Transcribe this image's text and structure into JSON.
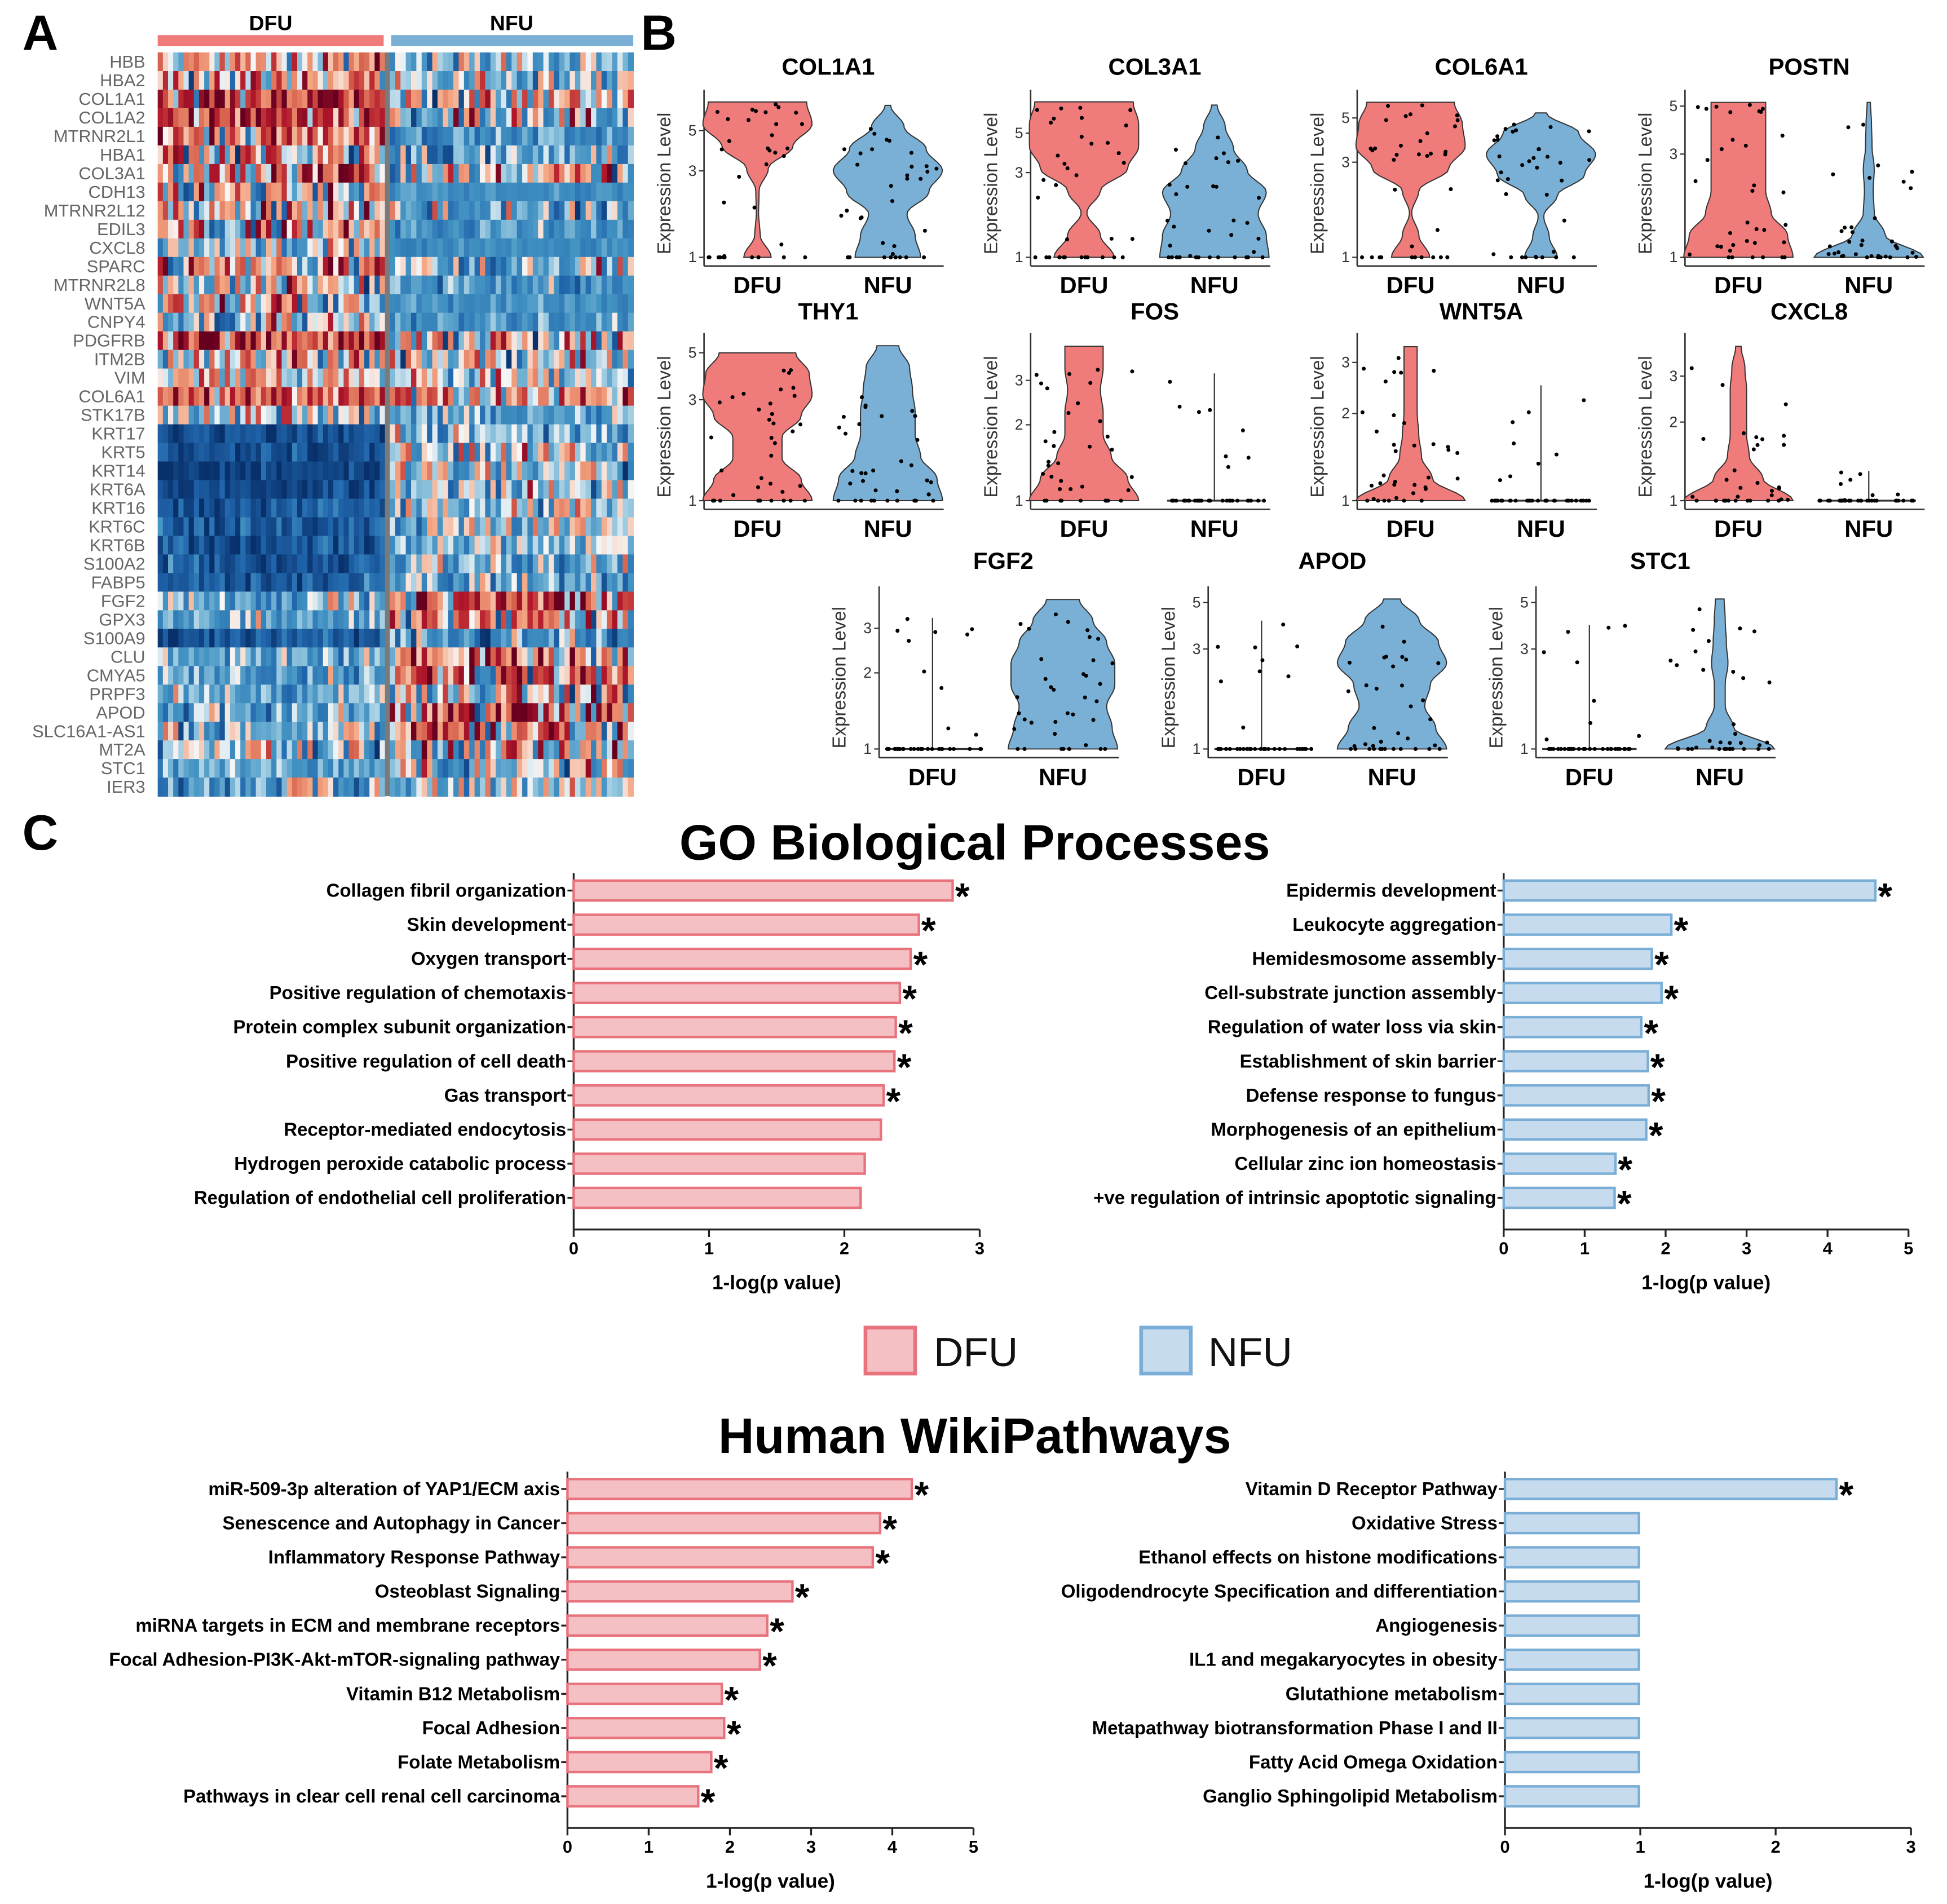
{
  "panels": {
    "a": "A",
    "b": "B",
    "c": "C"
  },
  "sections": {
    "go": "GO Biological Processes",
    "wiki": "Human WikiPathways"
  },
  "legend": [
    {
      "label": "DFU",
      "fill": "#f4c0c4",
      "stroke": "#e8737d"
    },
    {
      "label": "NFU",
      "fill": "#c6dcee",
      "stroke": "#7aaed6"
    }
  ],
  "colors": {
    "dfu": "#f07b7b",
    "nfu": "#7ab0d6",
    "dfu_bar": "#f4c0c4",
    "dfu_bar_edge": "#e8737d",
    "nfu_bar": "#c6dcee",
    "nfu_bar_edge": "#7aaed6"
  },
  "chart_data": [
    {
      "type": "heatmap",
      "groups": [
        "DFU",
        "NFU"
      ],
      "n_cells": {
        "DFU": 44,
        "NFU": 46
      },
      "value_scale": "row z-score (approx.)",
      "rows": [
        {
          "gene": "HBB",
          "dfu_mean": 0.4,
          "dfu_sd": 0.8,
          "nfu_mean": -0.3,
          "nfu_sd": 0.6
        },
        {
          "gene": "HBA2",
          "dfu_mean": 0.4,
          "dfu_sd": 0.8,
          "nfu_mean": -0.3,
          "nfu_sd": 0.6
        },
        {
          "gene": "COL1A1",
          "dfu_mean": 1.3,
          "dfu_sd": 0.7,
          "nfu_mean": 0.0,
          "nfu_sd": 0.9
        },
        {
          "gene": "COL1A2",
          "dfu_mean": 1.3,
          "dfu_sd": 0.7,
          "nfu_mean": 0.0,
          "nfu_sd": 0.9
        },
        {
          "gene": "MTRNR2L1",
          "dfu_mean": 0.5,
          "dfu_sd": 1.0,
          "nfu_mean": -0.8,
          "nfu_sd": 0.4
        },
        {
          "gene": "HBA1",
          "dfu_mean": 0.3,
          "dfu_sd": 0.9,
          "nfu_mean": -0.5,
          "nfu_sd": 0.7
        },
        {
          "gene": "COL3A1",
          "dfu_mean": 0.8,
          "dfu_sd": 1.1,
          "nfu_mean": -0.3,
          "nfu_sd": 0.9
        },
        {
          "gene": "CDH13",
          "dfu_mean": 0.0,
          "dfu_sd": 1.0,
          "nfu_mean": -0.8,
          "nfu_sd": 0.2
        },
        {
          "gene": "MTRNR2L12",
          "dfu_mean": 0.3,
          "dfu_sd": 1.0,
          "nfu_mean": -0.8,
          "nfu_sd": 0.7
        },
        {
          "gene": "EDIL3",
          "dfu_mean": 0.2,
          "dfu_sd": 1.2,
          "nfu_mean": -0.7,
          "nfu_sd": 0.3
        },
        {
          "gene": "CXCL8",
          "dfu_mean": -0.3,
          "dfu_sd": 0.8,
          "nfu_mean": -0.8,
          "nfu_sd": 0.2
        },
        {
          "gene": "SPARC",
          "dfu_mean": 0.6,
          "dfu_sd": 1.1,
          "nfu_mean": -0.3,
          "nfu_sd": 0.8
        },
        {
          "gene": "MTRNR2L8",
          "dfu_mean": 0.2,
          "dfu_sd": 1.0,
          "nfu_mean": -0.8,
          "nfu_sd": 0.5
        },
        {
          "gene": "WNT5A",
          "dfu_mean": -0.2,
          "dfu_sd": 1.0,
          "nfu_mean": -0.8,
          "nfu_sd": 0.2
        },
        {
          "gene": "CNPY4",
          "dfu_mean": -0.3,
          "dfu_sd": 0.8,
          "nfu_mean": -0.7,
          "nfu_sd": 0.3
        },
        {
          "gene": "PDGFRB",
          "dfu_mean": 1.2,
          "dfu_sd": 1.0,
          "nfu_mean": 0.1,
          "nfu_sd": 1.0
        },
        {
          "gene": "ITM2B",
          "dfu_mean": 0.3,
          "dfu_sd": 0.7,
          "nfu_mean": -0.2,
          "nfu_sd": 0.9
        },
        {
          "gene": "VIM",
          "dfu_mean": 0.3,
          "dfu_sd": 0.7,
          "nfu_mean": -0.1,
          "nfu_sd": 0.6
        },
        {
          "gene": "COL6A1",
          "dfu_mean": 0.9,
          "dfu_sd": 0.9,
          "nfu_mean": 0.3,
          "nfu_sd": 0.8
        },
        {
          "gene": "STK17B",
          "dfu_mean": -0.3,
          "dfu_sd": 0.8,
          "nfu_mean": -0.6,
          "nfu_sd": 0.5
        },
        {
          "gene": "KRT17",
          "dfu_mean": -1.7,
          "dfu_sd": 0.3,
          "nfu_mean": -0.3,
          "nfu_sd": 0.6
        },
        {
          "gene": "KRT5",
          "dfu_mean": -1.7,
          "dfu_sd": 0.3,
          "nfu_mean": -0.3,
          "nfu_sd": 0.6
        },
        {
          "gene": "KRT14",
          "dfu_mean": -2.0,
          "dfu_sd": 0.3,
          "nfu_mean": -0.3,
          "nfu_sd": 0.6
        },
        {
          "gene": "KRT6A",
          "dfu_mean": -1.8,
          "dfu_sd": 0.3,
          "nfu_mean": -0.3,
          "nfu_sd": 0.6
        },
        {
          "gene": "KRT16",
          "dfu_mean": -1.6,
          "dfu_sd": 0.4,
          "nfu_mean": -0.2,
          "nfu_sd": 0.6
        },
        {
          "gene": "KRT6C",
          "dfu_mean": -1.6,
          "dfu_sd": 0.4,
          "nfu_mean": -0.2,
          "nfu_sd": 0.6
        },
        {
          "gene": "KRT6B",
          "dfu_mean": -1.6,
          "dfu_sd": 0.4,
          "nfu_mean": -0.3,
          "nfu_sd": 0.6
        },
        {
          "gene": "S100A2",
          "dfu_mean": -1.6,
          "dfu_sd": 0.3,
          "nfu_mean": -0.5,
          "nfu_sd": 0.6
        },
        {
          "gene": "FABP5",
          "dfu_mean": -1.5,
          "dfu_sd": 0.4,
          "nfu_mean": -0.5,
          "nfu_sd": 0.6
        },
        {
          "gene": "FGF2",
          "dfu_mean": -0.6,
          "dfu_sd": 0.5,
          "nfu_mean": 0.6,
          "nfu_sd": 1.1
        },
        {
          "gene": "GPX3",
          "dfu_mean": -0.6,
          "dfu_sd": 0.5,
          "nfu_mean": 0.5,
          "nfu_sd": 1.1
        },
        {
          "gene": "S100A9",
          "dfu_mean": -1.6,
          "dfu_sd": 0.4,
          "nfu_mean": -0.6,
          "nfu_sd": 0.6
        },
        {
          "gene": "CLU",
          "dfu_mean": -0.6,
          "dfu_sd": 0.5,
          "nfu_mean": 0.8,
          "nfu_sd": 1.2
        },
        {
          "gene": "CMYA5",
          "dfu_mean": -0.6,
          "dfu_sd": 0.5,
          "nfu_mean": 0.8,
          "nfu_sd": 1.2
        },
        {
          "gene": "PRPF3",
          "dfu_mean": -0.6,
          "dfu_sd": 0.4,
          "nfu_mean": 0.3,
          "nfu_sd": 1.0
        },
        {
          "gene": "APOD",
          "dfu_mean": -0.5,
          "dfu_sd": 0.5,
          "nfu_mean": 0.9,
          "nfu_sd": 1.1
        },
        {
          "gene": "SLC16A1-AS1",
          "dfu_mean": -0.4,
          "dfu_sd": 0.6,
          "nfu_mean": 0.4,
          "nfu_sd": 1.0
        },
        {
          "gene": "MT2A",
          "dfu_mean": -0.1,
          "dfu_sd": 0.8,
          "nfu_mean": 0.2,
          "nfu_sd": 1.0
        },
        {
          "gene": "STC1",
          "dfu_mean": -0.6,
          "dfu_sd": 0.3,
          "nfu_mean": -0.2,
          "nfu_sd": 0.8
        },
        {
          "gene": "IER3",
          "dfu_mean": -0.6,
          "dfu_sd": 0.6,
          "nfu_mean": -0.3,
          "nfu_sd": 0.8
        }
      ]
    },
    {
      "type": "violin",
      "ylabel": "Expression Level",
      "yscale": "log",
      "groups": [
        "DFU",
        "NFU"
      ],
      "genes": [
        {
          "gene": "COL1A1",
          "ticks": [
            1,
            3,
            5
          ],
          "DFU": {
            "max": 7.2,
            "density": [
              0.25,
              0.05,
              0.02,
              0.03,
              0.2,
              0.65,
              1,
              0.9
            ]
          },
          "NFU": {
            "max": 6.9,
            "density": [
              0.6,
              0.5,
              0.35,
              0.75,
              1,
              0.7,
              0.3,
              0.05
            ]
          }
        },
        {
          "gene": "COL3A1",
          "ticks": [
            1,
            3,
            5
          ],
          "DFU": {
            "max": 7.5,
            "density": [
              0.55,
              0.3,
              0.05,
              0.3,
              0.8,
              1,
              1,
              0.9
            ]
          },
          "NFU": {
            "max": 7.2,
            "density": [
              1,
              0.95,
              0.8,
              0.95,
              0.6,
              0.35,
              0.2,
              0.05
            ]
          }
        },
        {
          "gene": "COL6A1",
          "ticks": [
            1,
            3,
            5
          ],
          "DFU": {
            "max": 6.0,
            "density": [
              0.35,
              0.15,
              0.02,
              0.15,
              0.7,
              1,
              0.95,
              0.8
            ]
          },
          "NFU": {
            "max": 5.3,
            "density": [
              0.3,
              0.15,
              0.05,
              0.3,
              0.8,
              1,
              0.7,
              0.1
            ]
          }
        },
        {
          "gene": "POSTN",
          "ticks": [
            1,
            3,
            5
          ],
          "DFU": {
            "max": 5.2,
            "density": [
              1,
              0.9,
              0.6,
              0.5,
              0.5,
              0.5,
              0.5,
              0.5
            ]
          },
          "NFU": {
            "max": 5.2,
            "density": [
              1,
              0.3,
              0.1,
              0.08,
              0.1,
              0.06,
              0.05,
              0.03
            ]
          }
        },
        {
          "gene": "THY1",
          "ticks": [
            1,
            3,
            5
          ],
          "DFU": {
            "max": 5.0,
            "density": [
              1,
              0.8,
              0.45,
              0.45,
              0.8,
              1,
              0.95,
              0.7
            ]
          },
          "NFU": {
            "max": 5.4,
            "density": [
              1,
              0.9,
              0.6,
              0.5,
              0.5,
              0.45,
              0.4,
              0.2
            ]
          }
        },
        {
          "gene": "FOS",
          "ticks": [
            1,
            2,
            3
          ],
          "DFU": {
            "max": 4.1,
            "density": [
              1,
              0.8,
              0.5,
              0.35,
              0.35,
              0.3,
              0.35,
              0.35
            ]
          },
          "NFU": {
            "max": 3.2,
            "thin": true
          }
        },
        {
          "gene": "WNT5A",
          "ticks": [
            1,
            2,
            3
          ],
          "DFU": {
            "max": 3.4,
            "density": [
              1,
              0.4,
              0.2,
              0.15,
              0.12,
              0.12,
              0.12,
              0.12
            ]
          },
          "NFU": {
            "max": 2.5,
            "thin": true
          }
        },
        {
          "gene": "CXCL8",
          "ticks": [
            1,
            2,
            3
          ],
          "DFU": {
            "max": 3.9,
            "density": [
              1,
              0.45,
              0.2,
              0.15,
              0.15,
              0.15,
              0.12,
              0.05
            ]
          },
          "NFU": {
            "max": 1.3,
            "thin": true
          }
        },
        {
          "gene": "FGF2",
          "ticks": [
            1,
            2,
            3
          ],
          "DFU": {
            "max": 3.3,
            "thin": true
          },
          "NFU": {
            "max": 3.9,
            "density": [
              1,
              0.9,
              0.8,
              0.95,
              0.95,
              0.8,
              0.55,
              0.3
            ]
          }
        },
        {
          "gene": "APOD",
          "ticks": [
            1,
            3,
            5
          ],
          "DFU": {
            "max": 4.1,
            "thin": true
          },
          "NFU": {
            "max": 5.2,
            "density": [
              1,
              0.8,
              0.6,
              0.7,
              1,
              0.85,
              0.5,
              0.15
            ]
          }
        },
        {
          "gene": "STC1",
          "ticks": [
            1,
            3,
            5
          ],
          "DFU": {
            "max": 3.9,
            "thin": true
          },
          "NFU": {
            "max": 5.2,
            "density": [
              1,
              0.25,
              0.1,
              0.1,
              0.15,
              0.12,
              0.1,
              0.08
            ]
          }
        }
      ]
    },
    {
      "type": "bar",
      "section": "go",
      "group": "DFU",
      "xlabel": "1-log(p value)",
      "xlim": [
        0,
        3
      ],
      "xticks": [
        0,
        1,
        2,
        3
      ],
      "categories": [
        "Collagen fibril organization",
        "Skin development",
        "Oxygen transport",
        "Positive regulation of chemotaxis",
        "Protein complex subunit organization",
        "Positive regulation of cell death",
        "Gas transport",
        "Receptor-mediated endocytosis",
        "Hydrogen peroxide catabolic process",
        "Regulation of endothelial cell proliferation"
      ],
      "values": [
        2.8,
        2.55,
        2.49,
        2.41,
        2.38,
        2.37,
        2.29,
        2.27,
        2.15,
        2.12
      ],
      "significant": [
        true,
        true,
        true,
        true,
        true,
        true,
        true,
        false,
        false,
        false
      ]
    },
    {
      "type": "bar",
      "section": "go",
      "group": "NFU",
      "xlabel": "1-log(p value)",
      "xlim": [
        0,
        5
      ],
      "xticks": [
        0,
        1,
        2,
        3,
        4,
        5
      ],
      "categories": [
        "Epidermis development",
        "Leukocyte aggregation",
        "Hemidesmosome assembly",
        "Cell-substrate junction assembly",
        "Regulation of water loss via skin",
        "Establishment of skin barrier",
        "Defense response to fungus",
        "Morphogenesis of an epithelium",
        "Cellular zinc ion homeostasis",
        "+ve regulation of intrinsic apoptotic signaling"
      ],
      "values": [
        4.59,
        2.07,
        1.83,
        1.95,
        1.7,
        1.78,
        1.79,
        1.76,
        1.38,
        1.37
      ],
      "significant": [
        true,
        true,
        true,
        true,
        true,
        true,
        true,
        true,
        true,
        true
      ]
    },
    {
      "type": "bar",
      "section": "wiki",
      "group": "DFU",
      "xlabel": "1-log(p value)",
      "xlim": [
        0,
        5
      ],
      "xticks": [
        0,
        1,
        2,
        3,
        4,
        5
      ],
      "categories": [
        "miR-509-3p alteration of YAP1/ECM axis",
        "Senescence and Autophagy in Cancer",
        "Inflammatory Response Pathway",
        "Osteoblast Signaling",
        "miRNA targets in ECM and membrane receptors",
        "Focal Adhesion-PI3K-Akt-mTOR-signaling pathway",
        "Vitamin B12 Metabolism",
        "Focal Adhesion",
        "Folate Metabolism",
        "Pathways in clear cell renal cell carcinoma"
      ],
      "values": [
        4.24,
        3.85,
        3.76,
        2.77,
        2.46,
        2.37,
        1.9,
        1.93,
        1.77,
        1.61
      ],
      "significant": [
        true,
        true,
        true,
        true,
        true,
        true,
        true,
        true,
        true,
        true
      ]
    },
    {
      "type": "bar",
      "section": "wiki",
      "group": "NFU",
      "xlabel": "1-log(p value)",
      "xlim": [
        0,
        3
      ],
      "xticks": [
        0,
        1,
        2,
        3
      ],
      "categories": [
        "Vitamin D Receptor Pathway",
        "Oxidative Stress",
        "Ethanol effects on histone modifications",
        "Oligodendrocyte Specification and differentiation",
        "Angiogenesis",
        "IL1 and megakaryocytes in obesity",
        "Glutathione metabolism",
        "Metapathway biotransformation Phase I and II",
        "Fatty Acid Omega Oxidation",
        "Ganglio Sphingolipid Metabolism"
      ],
      "values": [
        2.45,
        0.99,
        0.99,
        0.99,
        0.99,
        0.99,
        0.99,
        0.99,
        0.99,
        0.99
      ],
      "significant": [
        true,
        false,
        false,
        false,
        false,
        false,
        false,
        false,
        false,
        false
      ]
    }
  ]
}
